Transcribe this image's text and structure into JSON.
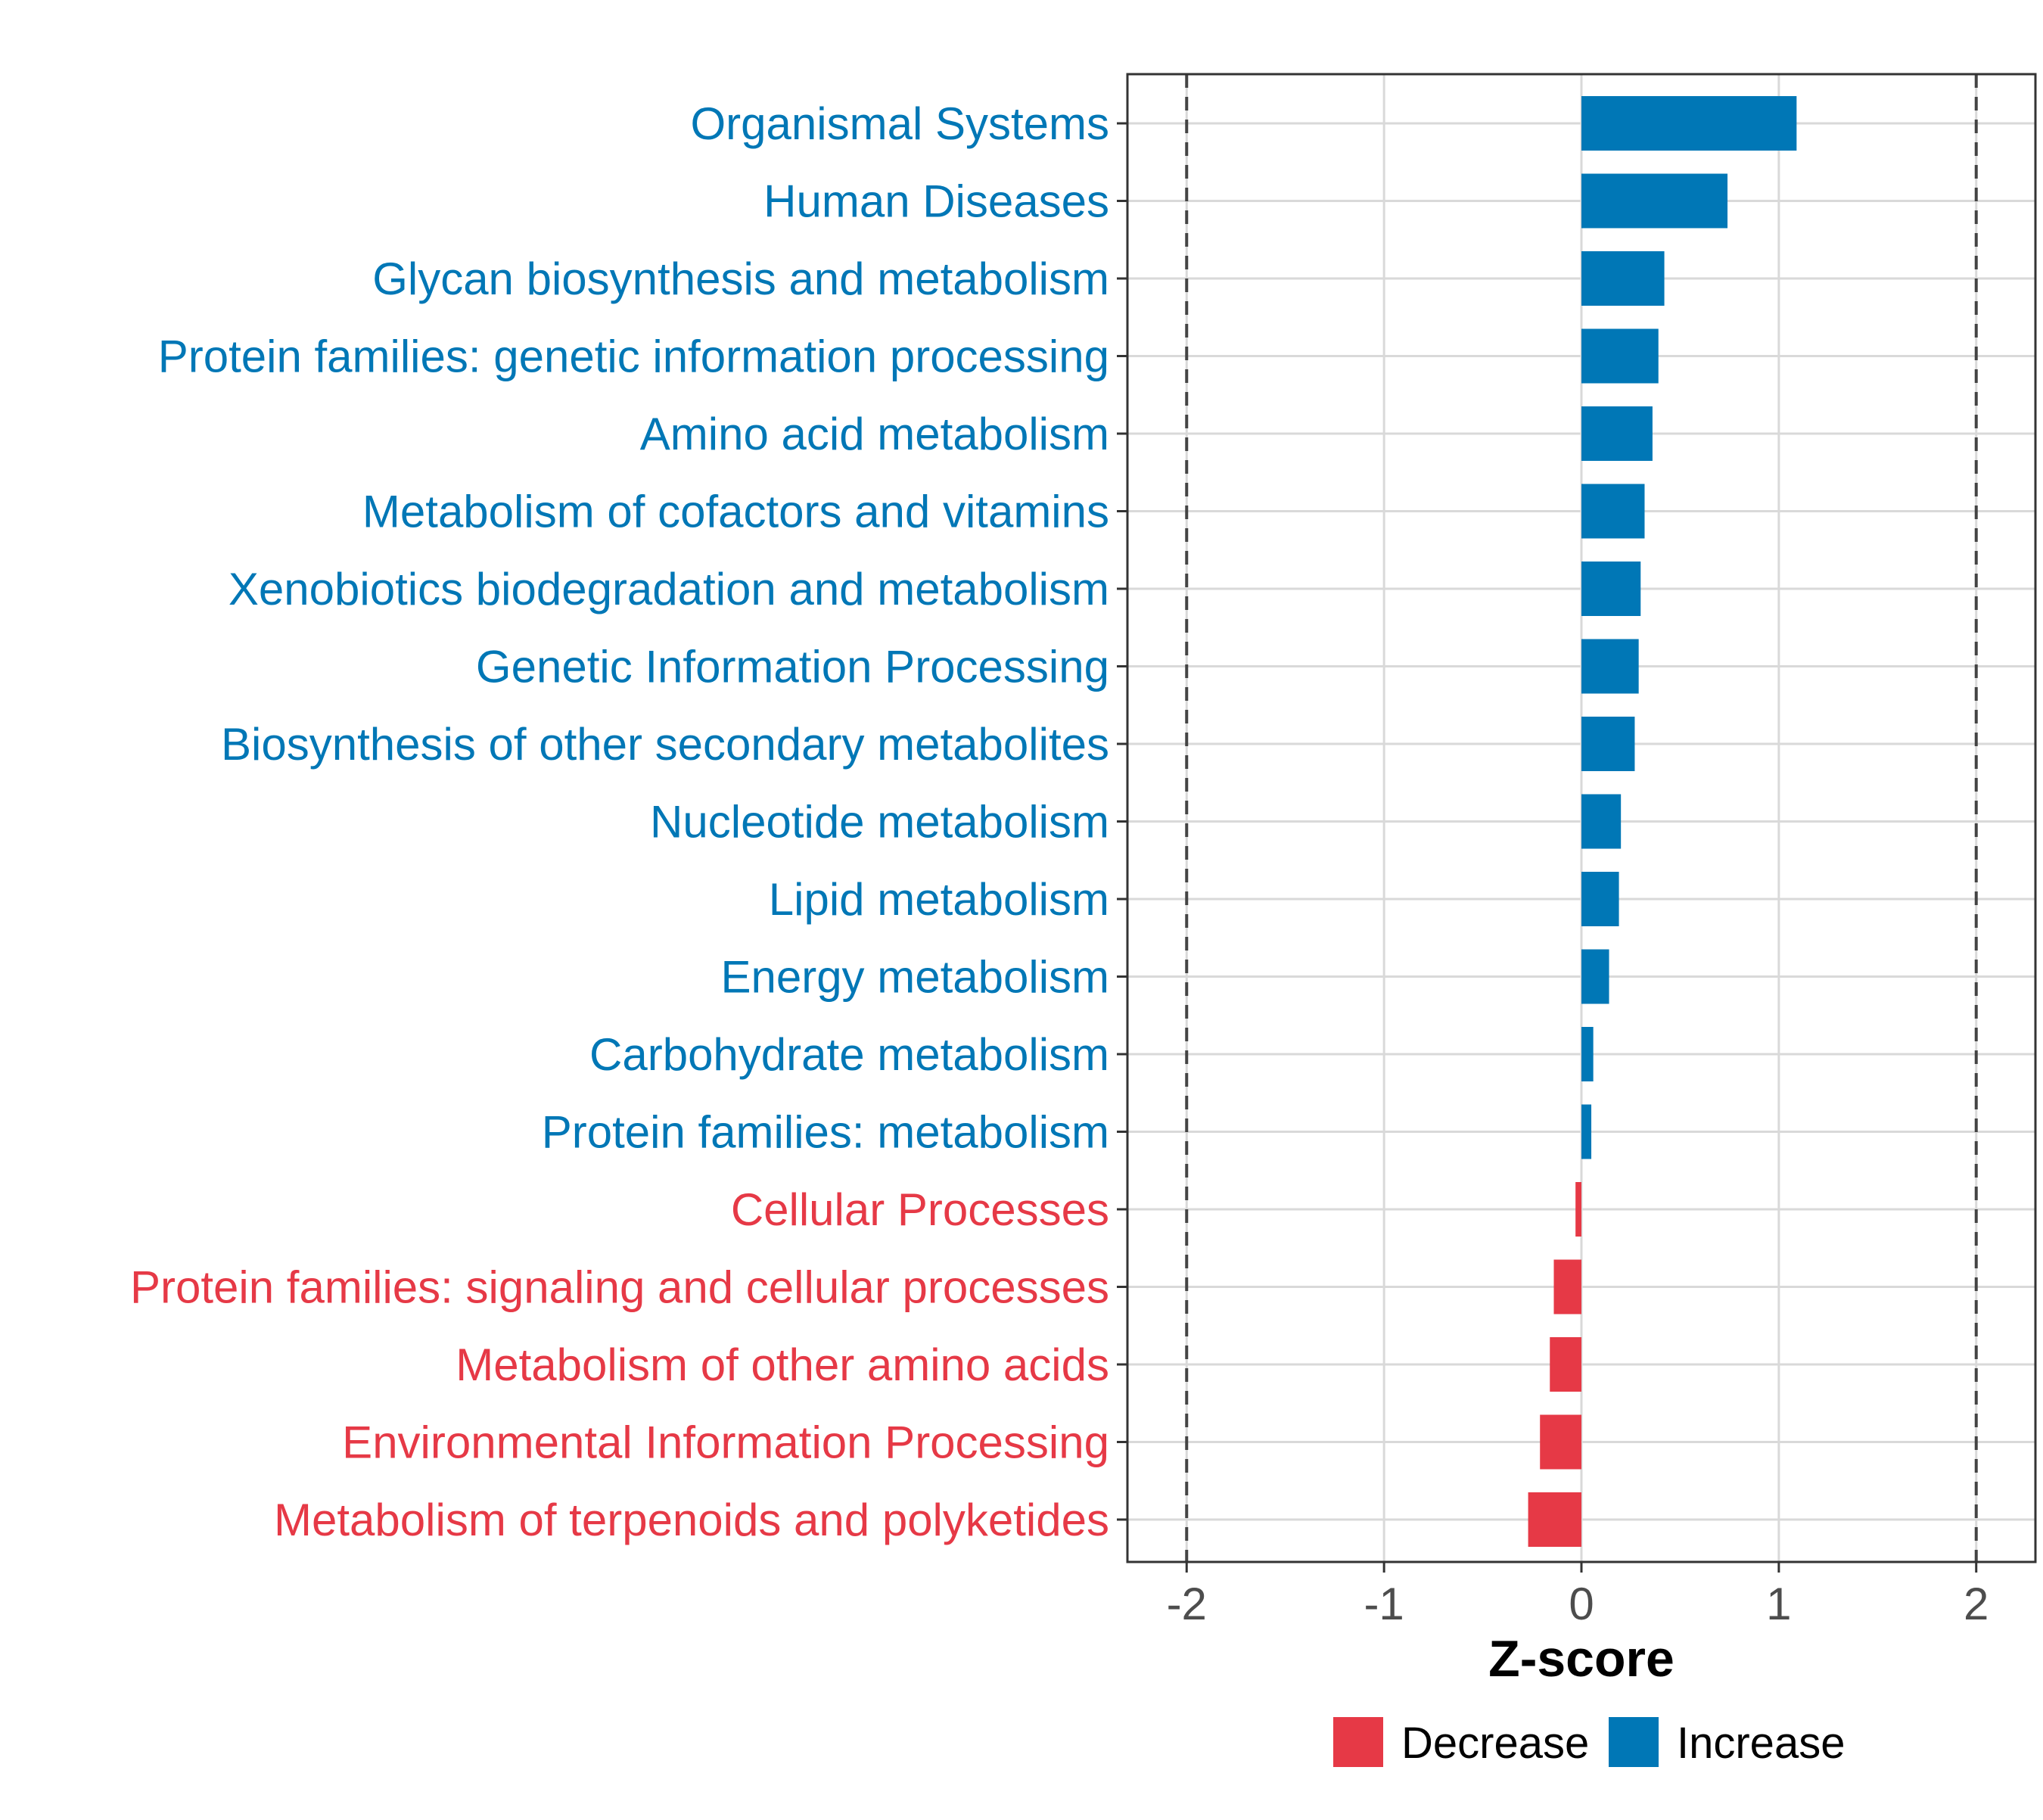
{
  "chart_data": {
    "type": "bar",
    "orientation": "horizontal",
    "title": "",
    "xlabel": "Z-score",
    "ylabel": "",
    "xlim": [
      -2.3,
      2.3
    ],
    "xticks": [
      -2,
      -1,
      0,
      1,
      2
    ],
    "xtick_labels": [
      "-2",
      "-1",
      "0",
      "1",
      "2"
    ],
    "reference_lines": [
      -2,
      2
    ],
    "grid": true,
    "legend_position": "bottom",
    "categories": [
      "Organismal Systems",
      "Human Diseases",
      "Glycan biosynthesis and metabolism",
      "Protein families: genetic information processing",
      "Amino acid metabolism",
      "Metabolism of cofactors and vitamins",
      "Xenobiotics biodegradation and metabolism",
      "Genetic Information Processing",
      "Biosynthesis of other secondary metabolites",
      "Nucleotide metabolism",
      "Lipid metabolism",
      "Energy metabolism",
      "Carbohydrate metabolism",
      "Protein families: metabolism",
      "Cellular Processes",
      "Protein families: signaling and cellular processes",
      "Metabolism of other amino acids",
      "Environmental Information Processing",
      "Metabolism of terpenoids and polyketides"
    ],
    "values": [
      1.09,
      0.74,
      0.42,
      0.39,
      0.36,
      0.32,
      0.3,
      0.29,
      0.27,
      0.2,
      0.19,
      0.14,
      0.06,
      0.05,
      -0.03,
      -0.14,
      -0.16,
      -0.21,
      -0.27
    ],
    "groups": [
      "Increase",
      "Increase",
      "Increase",
      "Increase",
      "Increase",
      "Increase",
      "Increase",
      "Increase",
      "Increase",
      "Increase",
      "Increase",
      "Increase",
      "Increase",
      "Increase",
      "Decrease",
      "Decrease",
      "Decrease",
      "Decrease",
      "Decrease"
    ],
    "legend": [
      {
        "name": "Decrease",
        "color": "#E63946"
      },
      {
        "name": "Increase",
        "color": "#0077B6"
      }
    ]
  }
}
